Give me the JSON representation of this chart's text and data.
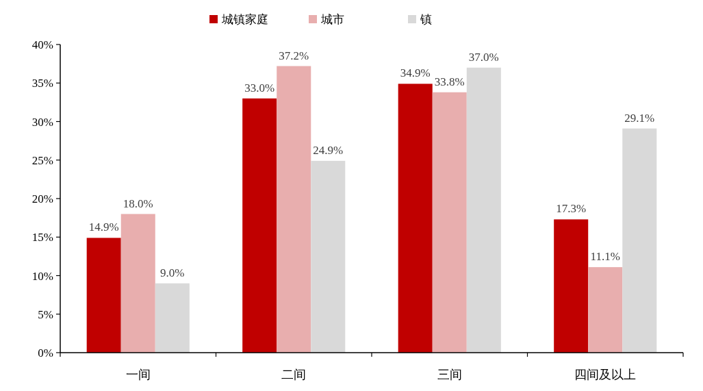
{
  "chart_data": {
    "type": "bar",
    "categories": [
      "一间",
      "二间",
      "三间",
      "四间及以上"
    ],
    "series": [
      {
        "name": "城镇家庭",
        "color": "#c00000",
        "values": [
          14.9,
          33.0,
          34.9,
          17.3
        ],
        "value_labels": [
          "14.9%",
          "33.0%",
          "34.9%",
          "17.3%"
        ]
      },
      {
        "name": "城市",
        "color": "#e8aeae",
        "values": [
          18.0,
          37.2,
          33.8,
          11.1
        ],
        "value_labels": [
          "18.0%",
          "37.2%",
          "33.8%",
          "11.1%"
        ]
      },
      {
        "name": "镇",
        "color": "#d9d9d9",
        "values": [
          9.0,
          24.9,
          37.0,
          29.1
        ],
        "value_labels": [
          "9.0%",
          "24.9%",
          "37.0%",
          "29.1%"
        ]
      }
    ],
    "ylim": [
      0,
      40
    ],
    "yticks": [
      {
        "value": 0,
        "label": "0%"
      },
      {
        "value": 5,
        "label": "5%"
      },
      {
        "value": 10,
        "label": "10%"
      },
      {
        "value": 15,
        "label": "15%"
      },
      {
        "value": 20,
        "label": "20%"
      },
      {
        "value": 25,
        "label": "25%"
      },
      {
        "value": 30,
        "label": "30%"
      },
      {
        "value": 35,
        "label": "35%"
      },
      {
        "value": 40,
        "label": "40%"
      }
    ],
    "legend": "top",
    "grid": false
  }
}
